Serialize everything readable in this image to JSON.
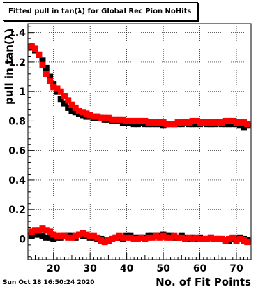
{
  "title": "Fitted pull in tan(λ) for Global Rec Pion NoHits",
  "timestamp": "Sun Oct 18 16:50:24 2020",
  "chart_data": {
    "type": "scatter",
    "xlabel": "No. of Fit Points",
    "ylabel": "pull in tan(λ)",
    "xlim": [
      13,
      74
    ],
    "ylim": [
      -0.14,
      1.46
    ],
    "xticks": [
      20,
      30,
      40,
      50,
      60,
      70
    ],
    "yticks": [
      0,
      0.2,
      0.4,
      0.6,
      0.8,
      1,
      1.2,
      1.4
    ],
    "grid": true,
    "marker": "square",
    "series": [
      {
        "color": "#000000",
        "x": [
          14,
          15,
          16,
          17,
          18,
          19,
          20,
          21,
          22,
          23,
          24,
          25,
          26,
          27,
          28,
          29,
          30,
          31,
          32,
          33,
          34,
          35,
          36,
          37,
          38,
          39,
          40,
          41,
          42,
          43,
          44,
          45,
          46,
          47,
          48,
          49,
          50,
          51,
          52,
          53,
          54,
          55,
          56,
          57,
          58,
          59,
          60,
          61,
          62,
          63,
          64,
          65,
          66,
          67,
          68,
          69,
          70,
          71,
          72,
          73
        ],
        "y": [
          1.3,
          1.28,
          1.25,
          1.21,
          1.16,
          1.1,
          1.05,
          1.0,
          0.95,
          0.92,
          0.89,
          0.87,
          0.86,
          0.85,
          0.84,
          0.83,
          0.83,
          0.82,
          0.82,
          0.82,
          0.81,
          0.81,
          0.8,
          0.8,
          0.8,
          0.79,
          0.79,
          0.79,
          0.78,
          0.78,
          0.79,
          0.78,
          0.78,
          0.78,
          0.78,
          0.78,
          0.77,
          0.78,
          0.78,
          0.78,
          0.78,
          0.78,
          0.79,
          0.78,
          0.78,
          0.78,
          0.78,
          0.79,
          0.78,
          0.78,
          0.78,
          0.79,
          0.78,
          0.78,
          0.78,
          0.78,
          0.78,
          0.77,
          0.76,
          0.77
        ],
        "points": "upper"
      },
      {
        "color": "#ff0000",
        "x": [
          14,
          15,
          16,
          17,
          18,
          19,
          20,
          21,
          22,
          23,
          24,
          25,
          26,
          27,
          28,
          29,
          30,
          31,
          32,
          33,
          34,
          35,
          36,
          37,
          38,
          39,
          40,
          41,
          42,
          43,
          44,
          45,
          46,
          47,
          48,
          49,
          50,
          51,
          52,
          53,
          54,
          55,
          56,
          57,
          58,
          59,
          60,
          61,
          62,
          63,
          64,
          65,
          66,
          67,
          68,
          69,
          70,
          71,
          72,
          73
        ],
        "y": [
          1.31,
          1.29,
          1.25,
          1.18,
          1.12,
          1.07,
          1.03,
          1.02,
          1.0,
          0.97,
          0.94,
          0.91,
          0.89,
          0.87,
          0.86,
          0.85,
          0.84,
          0.83,
          0.83,
          0.82,
          0.82,
          0.82,
          0.81,
          0.81,
          0.81,
          0.81,
          0.8,
          0.8,
          0.8,
          0.8,
          0.8,
          0.8,
          0.79,
          0.79,
          0.79,
          0.79,
          0.79,
          0.78,
          0.78,
          0.78,
          0.79,
          0.79,
          0.79,
          0.79,
          0.8,
          0.8,
          0.79,
          0.79,
          0.79,
          0.79,
          0.79,
          0.79,
          0.79,
          0.8,
          0.8,
          0.8,
          0.79,
          0.79,
          0.79,
          0.78
        ],
        "points": "upper"
      },
      {
        "color": "#000000",
        "x": [
          14,
          15,
          16,
          17,
          18,
          19,
          20,
          21,
          22,
          23,
          24,
          25,
          26,
          27,
          28,
          29,
          30,
          31,
          32,
          33,
          34,
          35,
          36,
          37,
          38,
          39,
          40,
          41,
          42,
          43,
          44,
          45,
          46,
          47,
          48,
          49,
          50,
          51,
          52,
          53,
          54,
          55,
          56,
          57,
          58,
          59,
          60,
          61,
          62,
          63,
          64,
          65,
          66,
          67,
          68,
          69,
          70,
          71,
          72,
          73
        ],
        "y": [
          0.02,
          0.03,
          0.03,
          0.02,
          0.01,
          0.01,
          0.0,
          0.01,
          0.01,
          0.02,
          0.02,
          0.02,
          0.01,
          0.03,
          0.02,
          0.02,
          0.01,
          0.01,
          0.0,
          0.0,
          -0.01,
          -0.01,
          0.0,
          0.01,
          0.01,
          0.0,
          0.02,
          0.02,
          0.01,
          0.01,
          0.01,
          0.01,
          0.02,
          0.02,
          0.02,
          0.02,
          0.03,
          0.02,
          0.02,
          0.01,
          0.01,
          0.02,
          0.01,
          0.0,
          0.01,
          0.0,
          0.01,
          0.0,
          0.0,
          0.01,
          0.0,
          0.0,
          0.0,
          -0.01,
          -0.01,
          0.0,
          0.0,
          0.01,
          0.0,
          -0.01
        ],
        "points": "lower"
      },
      {
        "color": "#ff0000",
        "x": [
          14,
          15,
          16,
          17,
          18,
          19,
          20,
          21,
          22,
          23,
          24,
          25,
          26,
          27,
          28,
          29,
          30,
          31,
          32,
          33,
          34,
          35,
          36,
          37,
          38,
          39,
          40,
          41,
          42,
          43,
          44,
          45,
          46,
          47,
          48,
          49,
          50,
          51,
          52,
          53,
          54,
          55,
          56,
          57,
          58,
          59,
          60,
          61,
          62,
          63,
          64,
          65,
          66,
          67,
          68,
          69,
          70,
          71,
          72,
          73
        ],
        "y": [
          0.05,
          0.06,
          0.06,
          0.07,
          0.06,
          0.05,
          0.03,
          0.02,
          0.02,
          0.02,
          0.01,
          0.01,
          0.02,
          0.03,
          0.04,
          0.03,
          0.02,
          0.02,
          0.01,
          -0.01,
          -0.02,
          -0.01,
          0.0,
          0.01,
          0.02,
          0.01,
          0.01,
          0.01,
          0.0,
          0.0,
          0.01,
          0.0,
          0.01,
          0.01,
          0.02,
          0.01,
          0.02,
          0.01,
          0.01,
          0.02,
          0.01,
          0.01,
          0.0,
          0.01,
          0.0,
          0.01,
          0.0,
          0.0,
          0.0,
          0.01,
          0.0,
          0.0,
          0.0,
          -0.01,
          0.0,
          0.01,
          -0.01,
          0.0,
          -0.01,
          -0.02
        ],
        "points": "lower"
      }
    ]
  }
}
